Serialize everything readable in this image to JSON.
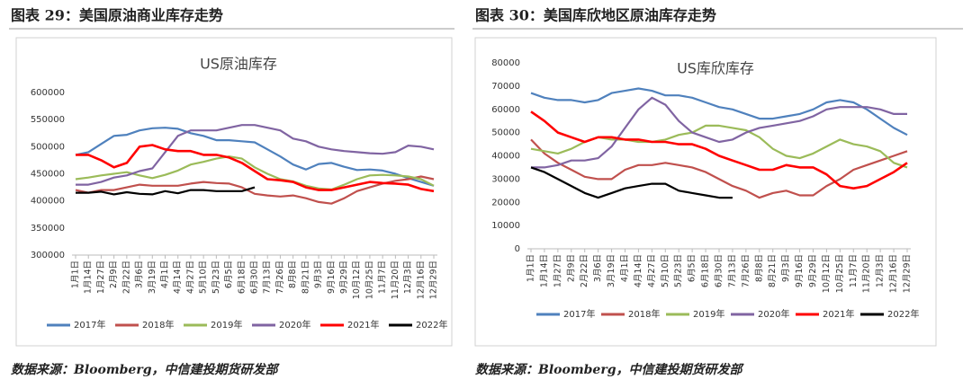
{
  "chart_data": [
    {
      "type": "line",
      "caption": "图表 29：美国原油商业库存走势",
      "title": "US原油库存",
      "source": "数据来源：Bloomberg，中信建投期货研发部",
      "categories": [
        "1月1日",
        "1月14日",
        "1月27日",
        "2月9日",
        "2月22日",
        "3月6日",
        "3月19日",
        "4月1日",
        "4月14日",
        "4月27日",
        "5月10日",
        "5月23日",
        "6月5日",
        "6月18日",
        "6月30日",
        "7月13日",
        "7月26日",
        "8月8日",
        "8月21日",
        "9月3日",
        "9月16日",
        "9月29日",
        "10月12日",
        "10月25日",
        "11月7日",
        "11月20日",
        "12月3日",
        "12月16日",
        "12月29日"
      ],
      "ylim": [
        300000,
        600000
      ],
      "yticks": [
        300000,
        350000,
        400000,
        450000,
        500000,
        550000,
        600000
      ],
      "series": [
        {
          "name": "2017年",
          "color": "#4f81bd",
          "values": [
            485000,
            490000,
            505000,
            520000,
            522000,
            530000,
            534000,
            535000,
            533000,
            525000,
            520000,
            512000,
            512000,
            510000,
            508000,
            495000,
            482000,
            467000,
            458000,
            468000,
            470000,
            463000,
            457000,
            458000,
            456000,
            450000,
            442000,
            435000,
            428000
          ]
        },
        {
          "name": "2018年",
          "color": "#c0504d",
          "values": [
            420000,
            415000,
            420000,
            420000,
            425000,
            430000,
            428000,
            428000,
            428000,
            432000,
            435000,
            433000,
            432000,
            425000,
            413000,
            410000,
            408000,
            410000,
            405000,
            398000,
            395000,
            405000,
            418000,
            425000,
            432000,
            437000,
            440000,
            445000,
            440000
          ]
        },
        {
          "name": "2019年",
          "color": "#9bbb59",
          "values": [
            440000,
            443000,
            447000,
            450000,
            453000,
            447000,
            442000,
            448000,
            456000,
            467000,
            472000,
            478000,
            482000,
            478000,
            462000,
            450000,
            440000,
            436000,
            428000,
            423000,
            421000,
            430000,
            440000,
            447000,
            448000,
            447000,
            445000,
            440000,
            428000
          ]
        },
        {
          "name": "2020年",
          "color": "#8064a2",
          "values": [
            430000,
            430000,
            435000,
            443000,
            447000,
            455000,
            460000,
            490000,
            520000,
            530000,
            530000,
            530000,
            535000,
            540000,
            540000,
            535000,
            530000,
            515000,
            510000,
            500000,
            495000,
            492000,
            490000,
            488000,
            487000,
            490000,
            502000,
            500000,
            495000
          ]
        },
        {
          "name": "2021年",
          "color": "#ff0000",
          "values": [
            485000,
            485000,
            475000,
            462000,
            470000,
            500000,
            503000,
            495000,
            492000,
            492000,
            485000,
            485000,
            480000,
            470000,
            455000,
            440000,
            438000,
            435000,
            425000,
            420000,
            420000,
            425000,
            430000,
            435000,
            433000,
            432000,
            430000,
            422000,
            418000
          ]
        },
        {
          "name": "2022年",
          "color": "#000000",
          "values": [
            415000,
            415000,
            417000,
            412000,
            416000,
            413000,
            412000,
            418000,
            414000,
            420000,
            420000,
            418000,
            418000,
            418000,
            425000,
            null,
            null,
            null,
            null,
            null,
            null,
            null,
            null,
            null,
            null,
            null,
            null,
            null,
            null
          ]
        }
      ]
    },
    {
      "type": "line",
      "caption": "图表 30：美国库欣地区原油库存走势",
      "title": "US库欣库存",
      "source": "数据来源：Bloomberg，中信建投期货研发部",
      "categories": [
        "1月1日",
        "1月14日",
        "1月27日",
        "2月9日",
        "2月22日",
        "3月6日",
        "3月19日",
        "4月1日",
        "4月14日",
        "4月27日",
        "5月10日",
        "5月23日",
        "6月5日",
        "6月18日",
        "6月30日",
        "7月13日",
        "7月26日",
        "8月8日",
        "8月21日",
        "9月3日",
        "9月16日",
        "9月29日",
        "10月12日",
        "10月25日",
        "11月7日",
        "11月20日",
        "12月3日",
        "12月16日",
        "12月29日"
      ],
      "ylim": [
        0,
        80000
      ],
      "yticks": [
        0,
        10000,
        20000,
        30000,
        40000,
        50000,
        60000,
        70000,
        80000
      ],
      "series": [
        {
          "name": "2017年",
          "color": "#4f81bd",
          "values": [
            67000,
            65000,
            64000,
            64000,
            63000,
            64000,
            67000,
            68000,
            69000,
            68000,
            66000,
            66000,
            65000,
            63000,
            61000,
            60000,
            58000,
            56000,
            56000,
            57000,
            58000,
            60000,
            63000,
            64000,
            63000,
            60000,
            56000,
            52000,
            49000
          ]
        },
        {
          "name": "2018年",
          "color": "#c0504d",
          "values": [
            47000,
            41000,
            37000,
            34000,
            31000,
            30000,
            30000,
            34000,
            36000,
            36000,
            37000,
            36000,
            35000,
            33000,
            30000,
            27000,
            25000,
            22000,
            24000,
            25000,
            23000,
            23000,
            27000,
            30000,
            34000,
            36000,
            38000,
            40000,
            42000
          ]
        },
        {
          "name": "2019年",
          "color": "#9bbb59",
          "values": [
            43000,
            42000,
            41000,
            43000,
            46000,
            48000,
            47000,
            47000,
            46000,
            46000,
            47000,
            49000,
            50000,
            53000,
            53000,
            52000,
            51000,
            48000,
            43000,
            40000,
            39000,
            41000,
            44000,
            47000,
            45000,
            44000,
            42000,
            37000,
            35000
          ]
        },
        {
          "name": "2020年",
          "color": "#8064a2",
          "values": [
            35000,
            35000,
            36000,
            38000,
            38000,
            39000,
            44000,
            52000,
            60000,
            65000,
            62000,
            55000,
            50000,
            48000,
            46000,
            47000,
            50000,
            52000,
            53000,
            54000,
            55000,
            57000,
            60000,
            61000,
            61000,
            61000,
            60000,
            58000,
            58000
          ]
        },
        {
          "name": "2021年",
          "color": "#ff0000",
          "values": [
            59000,
            55000,
            50000,
            48000,
            46000,
            48000,
            48000,
            47000,
            47000,
            46000,
            46000,
            45000,
            45000,
            43000,
            40000,
            38000,
            36000,
            34000,
            34000,
            36000,
            35000,
            35000,
            32000,
            27000,
            26000,
            27000,
            30000,
            33000,
            37000
          ]
        },
        {
          "name": "2022年",
          "color": "#000000",
          "values": [
            35000,
            33000,
            30000,
            27000,
            24000,
            22000,
            24000,
            26000,
            27000,
            28000,
            28000,
            25000,
            24000,
            23000,
            22000,
            22000,
            null,
            null,
            null,
            null,
            null,
            null,
            null,
            null,
            null,
            null,
            null,
            null,
            null
          ]
        }
      ]
    }
  ]
}
